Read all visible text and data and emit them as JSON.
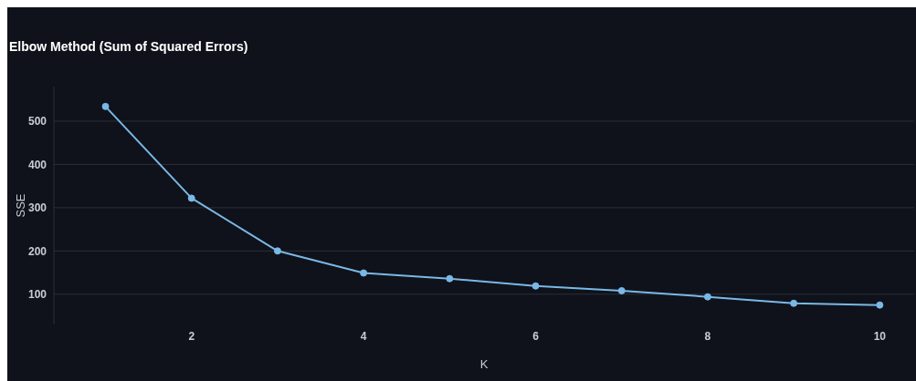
{
  "chart_data": {
    "type": "line",
    "title": "Elbow Method (Sum of Squared Errors)",
    "xlabel": "K",
    "ylabel": "SSE",
    "x": [
      1,
      2,
      3,
      4,
      5,
      6,
      7,
      8,
      9,
      10
    ],
    "series": [
      {
        "color": "#7ab8e6",
        "values": [
          534,
          322,
          200,
          149,
          136,
          119,
          108,
          94,
          79,
          75
        ]
      }
    ],
    "xlim": [
      0.4,
      10.4
    ],
    "xticks": [
      2,
      4,
      6,
      8,
      10
    ],
    "ylim": [
      30,
      580
    ],
    "yticks": [
      100,
      200,
      300,
      400,
      500
    ],
    "grid": "y",
    "marker": "circle",
    "line_style": "solid"
  }
}
